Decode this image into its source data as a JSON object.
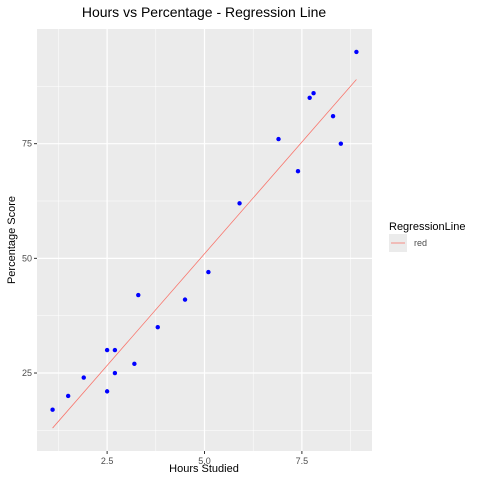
{
  "chart_data": {
    "type": "scatter",
    "title": "Hours vs Percentage - Regression Line",
    "xlabel": "Hours Studied",
    "ylabel": "Percentage Score",
    "xlim": [
      0.7,
      9.3
    ],
    "ylim": [
      8,
      100
    ],
    "xticks": [
      2.5,
      5.0,
      7.5
    ],
    "xtick_labels": [
      "2.5",
      "5.0",
      "7.5"
    ],
    "yticks": [
      25,
      50,
      75
    ],
    "ytick_labels": [
      "25",
      "50",
      "75"
    ],
    "grid": true,
    "legend_position": "right",
    "points": {
      "color": "#0000ff",
      "x": [
        1.1,
        1.5,
        1.9,
        2.5,
        2.5,
        2.7,
        2.7,
        3.2,
        3.3,
        3.8,
        4.5,
        5.1,
        5.9,
        6.9,
        7.4,
        7.7,
        7.8,
        8.3,
        8.5,
        8.9
      ],
      "y": [
        17,
        20,
        24,
        30,
        21,
        25,
        30,
        27,
        42,
        35,
        41,
        47,
        62,
        76,
        69,
        85,
        86,
        81,
        75,
        95
      ]
    },
    "regression_line": {
      "color": "#f8766d",
      "x": [
        1.1,
        8.9
      ],
      "y": [
        13,
        89
      ]
    },
    "legend": {
      "title": "RegressionLine",
      "entries": [
        {
          "label": "red",
          "color": "#f8766d"
        }
      ]
    }
  }
}
